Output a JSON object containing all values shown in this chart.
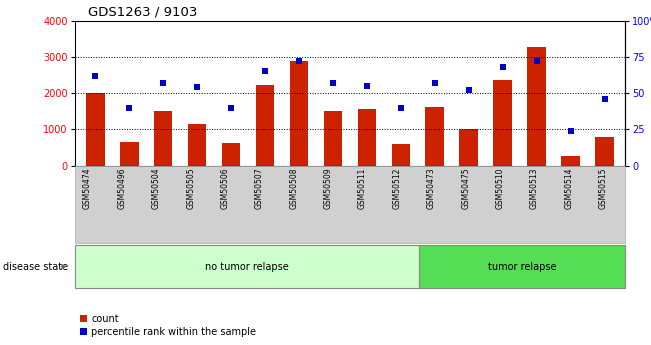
{
  "title": "GDS1263 / 9103",
  "categories": [
    "GSM50474",
    "GSM50496",
    "GSM50504",
    "GSM50505",
    "GSM50506",
    "GSM50507",
    "GSM50508",
    "GSM50509",
    "GSM50511",
    "GSM50512",
    "GSM50473",
    "GSM50475",
    "GSM50510",
    "GSM50513",
    "GSM50514",
    "GSM50515"
  ],
  "counts": [
    2000,
    650,
    1520,
    1150,
    620,
    2230,
    2900,
    1520,
    1570,
    600,
    1620,
    1000,
    2350,
    3280,
    260,
    780
  ],
  "percentiles": [
    62,
    40,
    57,
    54,
    40,
    65,
    72,
    57,
    55,
    40,
    57,
    52,
    68,
    72,
    24,
    46
  ],
  "n_no_tumor": 10,
  "n_tumor": 6,
  "bar_color": "#cc2200",
  "scatter_color": "#0000cc",
  "no_tumor_bg": "#ccffcc",
  "tumor_bg": "#55dd55",
  "sample_label_bg": "#d0d0d0",
  "ylim_left": [
    0,
    4000
  ],
  "ylim_right": [
    0,
    100
  ],
  "yticks_left": [
    0,
    1000,
    2000,
    3000,
    4000
  ],
  "yticks_right": [
    0,
    25,
    50,
    75,
    100
  ],
  "no_tumor_label": "no tumor relapse",
  "tumor_label": "tumor relapse",
  "disease_state_label": "disease state",
  "legend_count": "count",
  "legend_percentile": "percentile rank within the sample"
}
